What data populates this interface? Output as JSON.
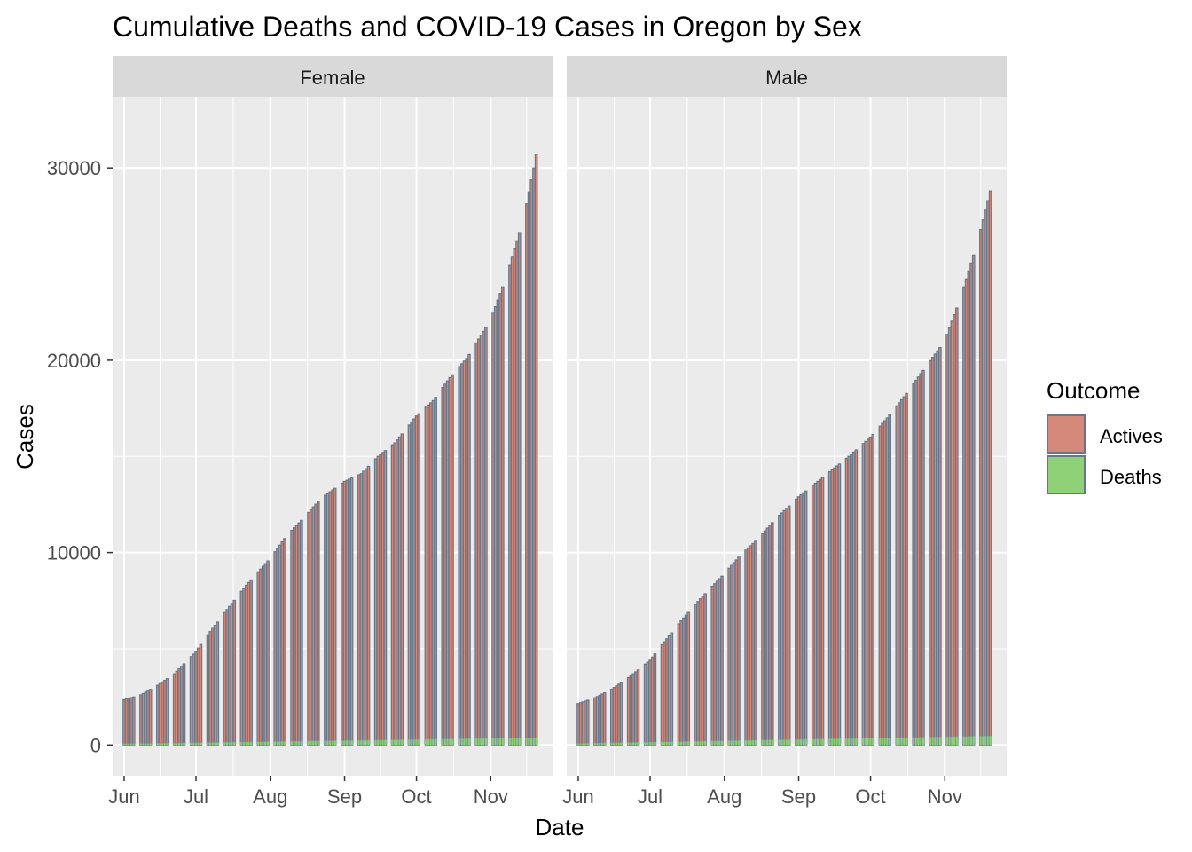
{
  "chart_data": {
    "type": "bar",
    "title": "Cumulative Deaths and COVID-19 Cases in Oregon by Sex",
    "xlabel": "Date",
    "ylabel": "Cases",
    "x_ticks": [
      "Jun",
      "Jul",
      "Aug",
      "Sep",
      "Oct",
      "Nov"
    ],
    "y_ticks": [
      0,
      10000,
      20000,
      30000
    ],
    "ylim": [
      -1600,
      33700
    ],
    "date_range": [
      "2020-06-01",
      "2020-11-22"
    ],
    "legend": {
      "title": "Outcome",
      "position": "right",
      "entries": [
        {
          "label": "Actives",
          "color": "#d4897a"
        },
        {
          "label": "Deaths",
          "color": "#8fd177"
        }
      ]
    },
    "bar_border_color": "#66778a",
    "panel_background": "#ebebeb",
    "strip_background": "#d9d9d9",
    "grid": true,
    "facets": [
      {
        "name": "Female",
        "series": [
          {
            "name": "Actives",
            "x": [
              "2020-06-01",
              "2020-11-22"
            ],
            "values": [
              2350,
              32100
            ]
          },
          {
            "name": "Deaths",
            "x": [
              "2020-06-01",
              "2020-11-22"
            ],
            "values": [
              60,
              380
            ]
          }
        ],
        "anchors": [
          {
            "x": "2020-06-01",
            "y": 2350
          },
          {
            "x": "2020-06-08",
            "y": 2600
          },
          {
            "x": "2020-06-15",
            "y": 3100
          },
          {
            "x": "2020-06-22",
            "y": 3700
          },
          {
            "x": "2020-07-01",
            "y": 4850
          },
          {
            "x": "2020-07-04",
            "y": 5400
          },
          {
            "x": "2020-07-15",
            "y": 7200
          },
          {
            "x": "2020-07-22",
            "y": 8300
          },
          {
            "x": "2020-08-01",
            "y": 9700
          },
          {
            "x": "2020-08-08",
            "y": 10900
          },
          {
            "x": "2020-08-15",
            "y": 11800
          },
          {
            "x": "2020-08-22",
            "y": 12800
          },
          {
            "x": "2020-09-01",
            "y": 13700
          },
          {
            "x": "2020-09-08",
            "y": 14100
          },
          {
            "x": "2020-09-15",
            "y": 15000
          },
          {
            "x": "2020-09-22",
            "y": 15700
          },
          {
            "x": "2020-10-01",
            "y": 17100
          },
          {
            "x": "2020-10-08",
            "y": 17900
          },
          {
            "x": "2020-10-15",
            "y": 19100
          },
          {
            "x": "2020-10-22",
            "y": 20100
          },
          {
            "x": "2020-11-01",
            "y": 22100
          },
          {
            "x": "2020-11-08",
            "y": 24500
          },
          {
            "x": "2020-11-15",
            "y": 27500
          },
          {
            "x": "2020-11-19",
            "y": 30000
          },
          {
            "x": "2020-11-22",
            "y": 32100
          }
        ]
      },
      {
        "name": "Male",
        "series": [
          {
            "name": "Actives",
            "x": [
              "2020-06-01",
              "2020-11-22"
            ],
            "values": [
              2150,
              29800
            ]
          },
          {
            "name": "Deaths",
            "x": [
              "2020-06-01",
              "2020-11-22"
            ],
            "values": [
              80,
              470
            ]
          }
        ],
        "anchors": [
          {
            "x": "2020-06-01",
            "y": 2150
          },
          {
            "x": "2020-06-08",
            "y": 2450
          },
          {
            "x": "2020-06-15",
            "y": 2900
          },
          {
            "x": "2020-06-22",
            "y": 3500
          },
          {
            "x": "2020-07-01",
            "y": 4400
          },
          {
            "x": "2020-07-04",
            "y": 4900
          },
          {
            "x": "2020-07-15",
            "y": 6600
          },
          {
            "x": "2020-07-22",
            "y": 7600
          },
          {
            "x": "2020-08-01",
            "y": 8900
          },
          {
            "x": "2020-08-08",
            "y": 9900
          },
          {
            "x": "2020-08-15",
            "y": 10700
          },
          {
            "x": "2020-08-22",
            "y": 11700
          },
          {
            "x": "2020-09-01",
            "y": 12900
          },
          {
            "x": "2020-09-08",
            "y": 13600
          },
          {
            "x": "2020-09-15",
            "y": 14300
          },
          {
            "x": "2020-09-22",
            "y": 15000
          },
          {
            "x": "2020-10-01",
            "y": 16000
          },
          {
            "x": "2020-10-08",
            "y": 17000
          },
          {
            "x": "2020-10-15",
            "y": 18100
          },
          {
            "x": "2020-10-22",
            "y": 19300
          },
          {
            "x": "2020-11-01",
            "y": 21000
          },
          {
            "x": "2020-11-08",
            "y": 23400
          },
          {
            "x": "2020-11-15",
            "y": 26300
          },
          {
            "x": "2020-11-19",
            "y": 28300
          },
          {
            "x": "2020-11-22",
            "y": 29800
          }
        ]
      }
    ]
  }
}
